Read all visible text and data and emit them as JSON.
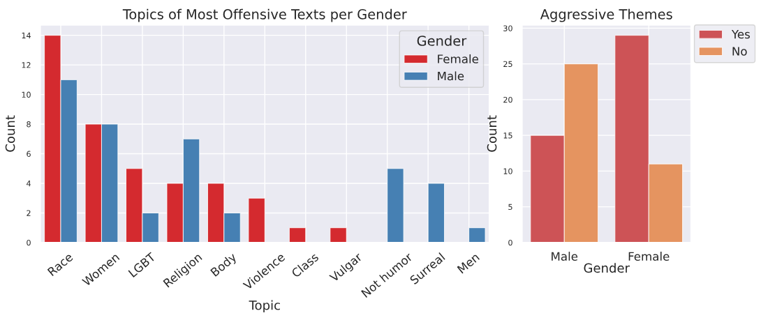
{
  "chart_data": [
    {
      "type": "bar",
      "title": "Topics of Most Offensive Texts per Gender",
      "xlabel": "Topic",
      "ylabel": "Count",
      "categories": [
        "Race",
        "Women",
        "LGBT",
        "Religion",
        "Body",
        "Violence",
        "Class",
        "Vulgar",
        "Not humor",
        "Surreal",
        "Men"
      ],
      "series": [
        {
          "name": "Female",
          "color": "#d42a2f",
          "values": [
            14,
            8,
            5,
            4,
            4,
            3,
            1,
            1,
            0,
            0,
            0
          ]
        },
        {
          "name": "Male",
          "color": "#4680b3",
          "values": [
            11,
            8,
            2,
            7,
            2,
            0,
            0,
            0,
            5,
            4,
            1
          ]
        }
      ],
      "ylim": [
        0,
        14.7
      ],
      "yticks": [
        0,
        2,
        4,
        6,
        8,
        10,
        12,
        14
      ],
      "grid": true,
      "legend": "top right",
      "legend_title": "Gender"
    },
    {
      "type": "bar",
      "title": "Aggressive Themes",
      "xlabel": "Gender",
      "ylabel": "Count",
      "categories": [
        "Male",
        "Female"
      ],
      "series": [
        {
          "name": "Yes",
          "color": "#cd5356",
          "values": [
            15,
            29
          ]
        },
        {
          "name": "No",
          "color": "#e59460",
          "values": [
            25,
            11
          ]
        }
      ],
      "ylim": [
        0,
        30.45
      ],
      "yticks": [
        0,
        5,
        10,
        15,
        20,
        25,
        30
      ],
      "grid": true,
      "legend": "right"
    }
  ]
}
